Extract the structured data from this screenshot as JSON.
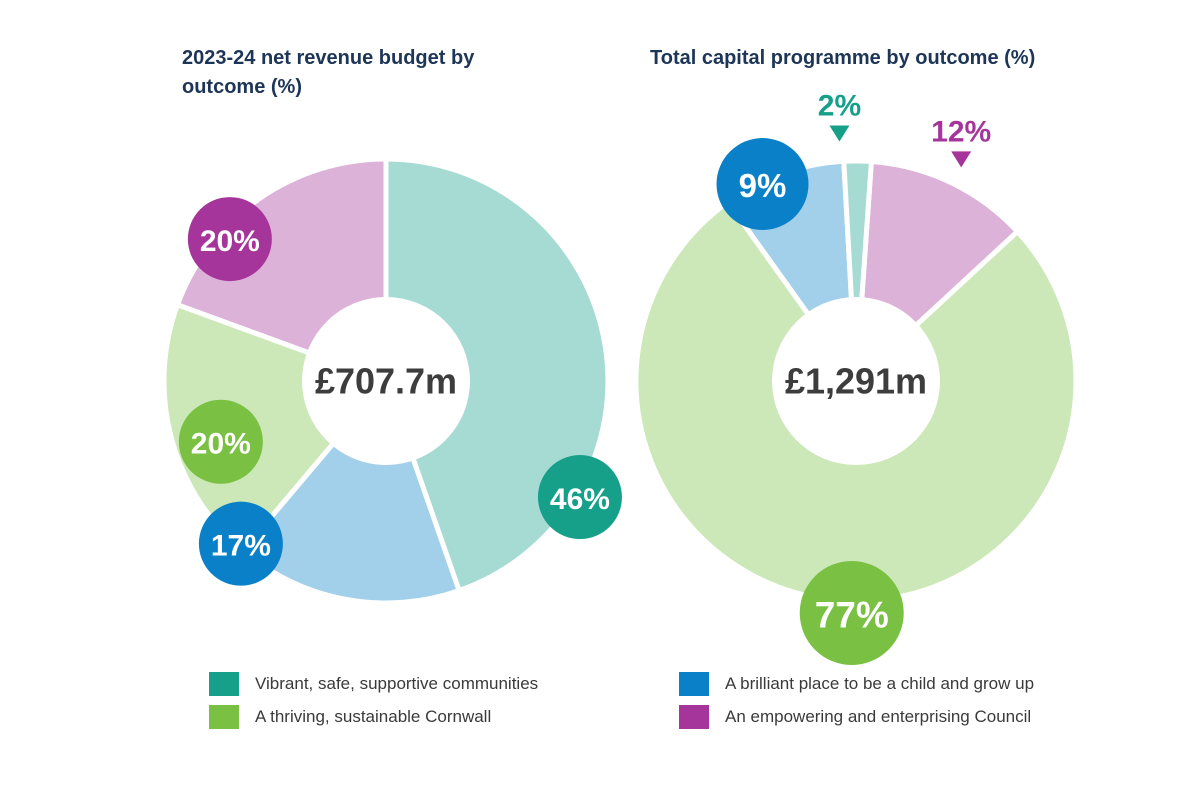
{
  "colors": {
    "teal": "#16a08a",
    "green": "#7ac143",
    "blue": "#0a80c8",
    "purple": "#a6359b",
    "center_text": "#3d3d3d",
    "title": "#1d3557"
  },
  "legend": [
    {
      "label": "Vibrant, safe, supportive communities",
      "color": "#16a08a"
    },
    {
      "label": "A thriving, sustainable Cornwall",
      "color": "#7ac143"
    },
    {
      "label": "A brilliant place to be a child and grow up",
      "color": "#0a80c8"
    },
    {
      "label": "An empowering and enterprising Council",
      "color": "#a6359b"
    }
  ],
  "chart_data": [
    {
      "type": "pie",
      "title": "2023-24 net revenue budget by outcome (%)",
      "center_label": "£707.7m",
      "slices": [
        {
          "name": "Vibrant, safe, supportive communities",
          "value": 46,
          "label": "46%",
          "color": "#16a08a"
        },
        {
          "name": "A brilliant place to be a child and grow up",
          "value": 17,
          "label": "17%",
          "color": "#0a80c8"
        },
        {
          "name": "A thriving, sustainable Cornwall",
          "value": 20,
          "label": "20%",
          "color": "#7ac143"
        },
        {
          "name": "An empowering and enterprising Council",
          "value": 20,
          "label": "20%",
          "color": "#a6359b"
        }
      ]
    },
    {
      "type": "pie",
      "title": "Total capital programme by outcome (%)",
      "center_label": "£1,291m",
      "slices": [
        {
          "name": "An empowering and enterprising Council",
          "value": 12,
          "label": "12%",
          "color": "#a6359b"
        },
        {
          "name": "A thriving, sustainable Cornwall",
          "value": 77,
          "label": "77%",
          "color": "#7ac143"
        },
        {
          "name": "A brilliant place to be a child and grow up",
          "value": 9,
          "label": "9%",
          "color": "#0a80c8"
        },
        {
          "name": "Vibrant, safe, supportive communities",
          "value": 2,
          "label": "2%",
          "color": "#16a08a"
        }
      ]
    }
  ]
}
